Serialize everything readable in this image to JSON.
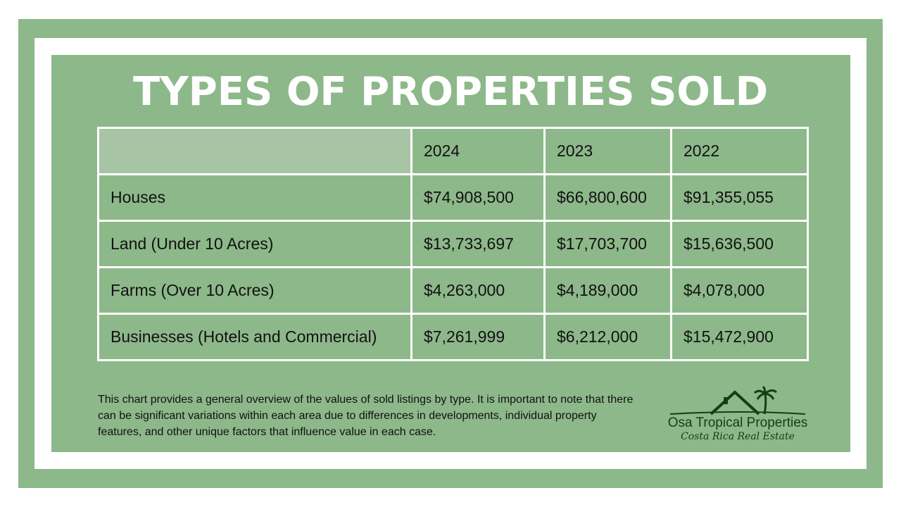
{
  "title": "TYPES OF PROPERTIES SOLD",
  "table": {
    "headers": [
      "",
      "2024",
      "2023",
      "2022"
    ],
    "rows": [
      [
        "Houses",
        "$74,908,500",
        "$66,800,600",
        "$91,355,055"
      ],
      [
        "Land (Under 10 Acres)",
        "$13,733,697",
        "$17,703,700",
        "$15,636,500"
      ],
      [
        "Farms (Over 10 Acres)",
        "$4,263,000",
        "$4,189,000",
        "$4,078,000"
      ],
      [
        "Businesses (Hotels and Commercial)",
        "$7,261,999",
        "$6,212,000",
        "$15,472,900"
      ]
    ]
  },
  "note": "This chart provides a general overview of the values of sold listings by type. It is important to note that there can be significant variations within each area due to differences in developments, individual property features, and other unique factors that influence value in each case.",
  "logo": {
    "name": "Osa Tropical Properties",
    "tagline": "Costa Rica Real Estate",
    "icon": "house-palm-icon"
  },
  "colors": {
    "green": "#8db88a",
    "header_cell": "#a7c4a5",
    "logo": "#163d17"
  }
}
